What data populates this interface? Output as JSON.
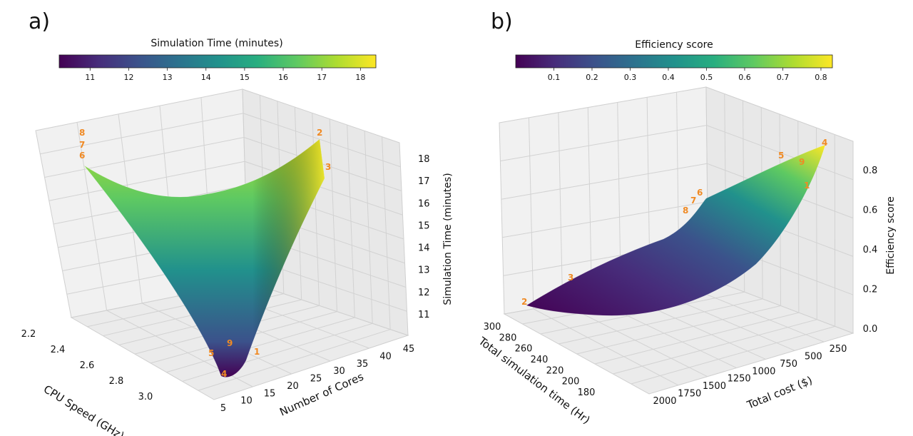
{
  "chart_data": [
    {
      "panel_label": "a)",
      "type": "surface",
      "colorbar": {
        "title": "Simulation Time (minutes)",
        "ticks": [
          "11",
          "12",
          "13",
          "14",
          "15",
          "16",
          "17",
          "18"
        ],
        "range": [
          10.2,
          18.4
        ],
        "colormap": "viridis"
      },
      "xlabel": "CPU Speed (GHz)",
      "x_ticks": [
        "2.2",
        "2.4",
        "2.6",
        "2.8",
        "3.0"
      ],
      "x_range": [
        2.2,
        3.1
      ],
      "ylabel": "Number of Cores",
      "y_ticks": [
        "5",
        "10",
        "15",
        "20",
        "25",
        "30",
        "35",
        "40",
        "45"
      ],
      "y_range": [
        4,
        46
      ],
      "zlabel": "Simulation Time (minutes)",
      "z_ticks": [
        "11",
        "12",
        "13",
        "14",
        "15",
        "16",
        "17",
        "18"
      ],
      "z_range": [
        10.2,
        18.4
      ],
      "grid": true,
      "point_labels": [
        "1",
        "2",
        "3",
        "4",
        "5",
        "6",
        "7",
        "8",
        "9"
      ],
      "surface_description_values": {
        "min_at": {
          "cpu_speed": 3.0,
          "cores": 6,
          "time": 10.4
        },
        "corner_high_speed_many_cores": 18.3,
        "corner_low_speed_few_cores": 17.6
      }
    },
    {
      "panel_label": "b)",
      "type": "surface",
      "colorbar": {
        "title": "Efficiency score",
        "ticks": [
          "0.1",
          "0.2",
          "0.3",
          "0.4",
          "0.5",
          "0.6",
          "0.7",
          "0.8"
        ],
        "range": [
          0.0,
          0.83
        ],
        "colormap": "viridis"
      },
      "xlabel": "Total simulation time (Hr)",
      "x_ticks": [
        "300",
        "280",
        "260",
        "240",
        "220",
        "200",
        "180"
      ],
      "ylabel": "Total cost ($)",
      "y_ticks": [
        "2000",
        "1750",
        "1500",
        "1250",
        "1000",
        "750",
        "500",
        "250"
      ],
      "zlabel": "Efficiency score",
      "z_ticks": [
        "0.0",
        "0.2",
        "0.4",
        "0.6",
        "0.8"
      ],
      "z_range": [
        0.0,
        0.83
      ],
      "grid": true,
      "point_labels": [
        "1",
        "2",
        "3",
        "4",
        "5",
        "6",
        "7",
        "8",
        "9"
      ]
    }
  ]
}
